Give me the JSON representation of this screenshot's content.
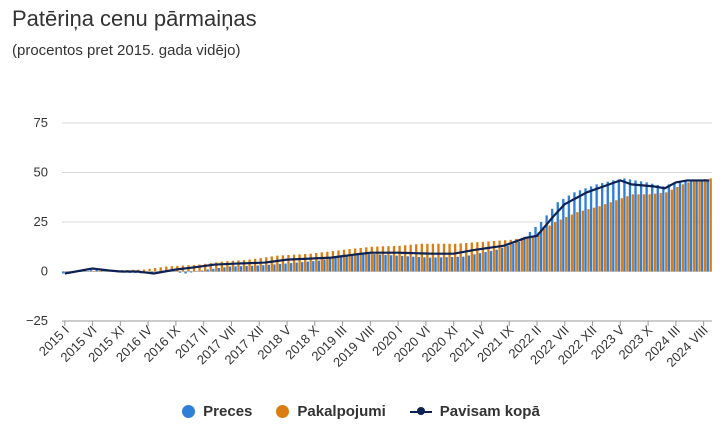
{
  "chart_data": {
    "type": "bar",
    "title": "Patēriņa cenu pārmaiņas",
    "subtitle": "(procentos pret 2015. gada vidējo)",
    "ylim": [
      -25,
      75
    ],
    "yticks": [
      "75",
      "50",
      "25",
      "0",
      "−25"
    ],
    "ytick_values": [
      75,
      50,
      25,
      0,
      -25
    ],
    "grid": true,
    "legend_position": "bottom",
    "colors": {
      "preces": "#2f7ed8",
      "pakalpojumi": "#d97d12",
      "total": "#0d2252"
    },
    "xtick_labels": [
      "2015 I",
      "2015 VI",
      "2015 XI",
      "2016 IV",
      "2016 IX",
      "2017 II",
      "2017 VII",
      "2017 XII",
      "2018 V",
      "2018 X",
      "2019 III",
      "2019 VIII",
      "2020 I",
      "2020 VI",
      "2020 XI",
      "2021 IV",
      "2021 IX",
      "2022 II",
      "2022 VII",
      "2022 XII",
      "2023 V",
      "2023 X",
      "2024 III",
      "2024 VIII"
    ],
    "xtick_index": [
      0,
      5,
      10,
      15,
      20,
      25,
      30,
      35,
      40,
      45,
      50,
      55,
      60,
      65,
      70,
      75,
      80,
      85,
      90,
      95,
      100,
      105,
      110,
      115
    ],
    "series": [
      {
        "name": "Preces",
        "type": "bar",
        "keypoints": [
          [
            0,
            -1
          ],
          [
            6,
            1
          ],
          [
            10,
            -0.5
          ],
          [
            15,
            -1
          ],
          [
            18,
            0.5
          ],
          [
            22,
            -1
          ],
          [
            26,
            1
          ],
          [
            30,
            2.5
          ],
          [
            35,
            3
          ],
          [
            40,
            4
          ],
          [
            46,
            5.5
          ],
          [
            50,
            8
          ],
          [
            55,
            9
          ],
          [
            60,
            8
          ],
          [
            66,
            7
          ],
          [
            72,
            7.5
          ],
          [
            78,
            11
          ],
          [
            82,
            15
          ],
          [
            86,
            25
          ],
          [
            89,
            35
          ],
          [
            92,
            40
          ],
          [
            96,
            44
          ],
          [
            99,
            46
          ],
          [
            101,
            47
          ],
          [
            105,
            45
          ],
          [
            108,
            43
          ],
          [
            110,
            45
          ],
          [
            113,
            46
          ],
          [
            116,
            46
          ]
        ]
      },
      {
        "name": "Pakalpojumi",
        "type": "bar",
        "keypoints": [
          [
            0,
            0
          ],
          [
            8,
            0.5
          ],
          [
            14,
            1
          ],
          [
            18,
            2.5
          ],
          [
            24,
            3.5
          ],
          [
            28,
            5
          ],
          [
            33,
            6
          ],
          [
            38,
            8
          ],
          [
            44,
            9
          ],
          [
            50,
            11
          ],
          [
            55,
            12.5
          ],
          [
            60,
            13
          ],
          [
            64,
            14
          ],
          [
            70,
            14
          ],
          [
            75,
            15
          ],
          [
            80,
            16
          ],
          [
            84,
            18
          ],
          [
            88,
            25
          ],
          [
            92,
            30
          ],
          [
            96,
            33
          ],
          [
            99,
            36
          ],
          [
            102,
            39
          ],
          [
            105,
            39
          ],
          [
            108,
            40
          ],
          [
            111,
            44
          ],
          [
            113,
            46
          ],
          [
            116,
            47
          ]
        ]
      },
      {
        "name": "Pavisam kopā",
        "type": "line",
        "keypoints": [
          [
            0,
            -1
          ],
          [
            5,
            1.5
          ],
          [
            8,
            0.5
          ],
          [
            10,
            0
          ],
          [
            13,
            0
          ],
          [
            16,
            -1
          ],
          [
            20,
            1
          ],
          [
            23,
            2
          ],
          [
            27,
            3.5
          ],
          [
            31,
            4
          ],
          [
            36,
            4.5
          ],
          [
            40,
            6
          ],
          [
            44,
            6.5
          ],
          [
            48,
            7
          ],
          [
            52,
            8.5
          ],
          [
            55,
            9.5
          ],
          [
            60,
            9.5
          ],
          [
            66,
            9
          ],
          [
            70,
            9
          ],
          [
            74,
            11
          ],
          [
            79,
            13
          ],
          [
            83,
            17
          ],
          [
            85,
            18
          ],
          [
            88,
            28
          ],
          [
            90,
            34
          ],
          [
            94,
            40
          ],
          [
            98,
            44
          ],
          [
            100,
            46
          ],
          [
            102,
            44
          ],
          [
            106,
            43
          ],
          [
            108,
            42
          ],
          [
            110,
            45
          ],
          [
            112,
            46
          ],
          [
            114,
            46
          ],
          [
            116,
            46
          ]
        ]
      }
    ]
  },
  "legend": [
    {
      "label": "Preces",
      "color": "#2f7ed8",
      "symbol": "dot"
    },
    {
      "label": "Pakalpojumi",
      "color": "#d97d12",
      "symbol": "dot"
    },
    {
      "label": "Pavisam kopā",
      "color": "#0d2252",
      "symbol": "line"
    }
  ]
}
